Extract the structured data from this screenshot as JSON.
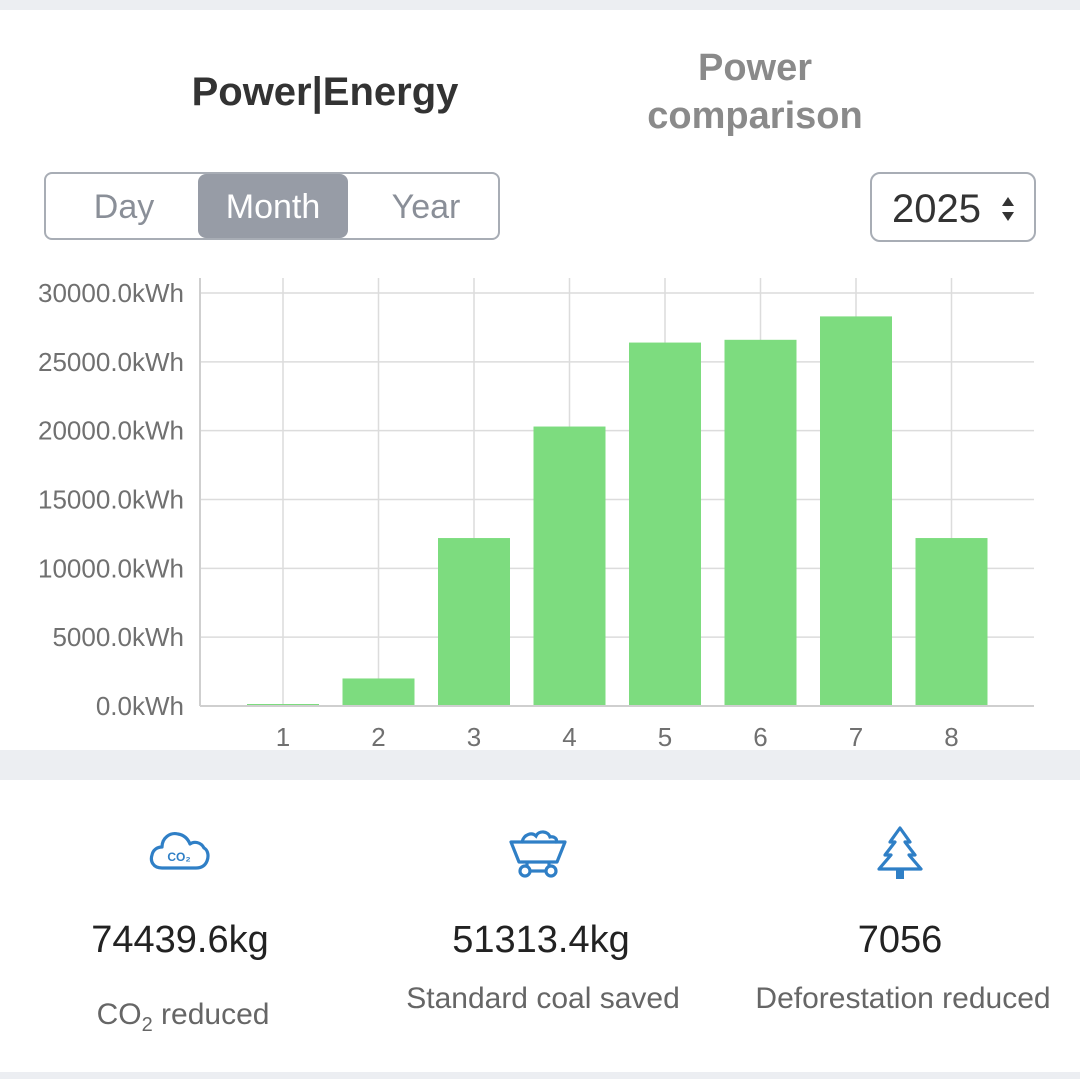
{
  "tabs": {
    "power_energy": "Power|Energy",
    "power_comparison": "Power comparison"
  },
  "period_selector": {
    "options": [
      "Day",
      "Month",
      "Year"
    ],
    "selected": "Month"
  },
  "year_select": {
    "value": "2025"
  },
  "chart_data": {
    "type": "bar",
    "categories": [
      "1",
      "2",
      "3",
      "4",
      "5",
      "6",
      "7",
      "8"
    ],
    "values": [
      100,
      2000,
      12200,
      20300,
      26400,
      26600,
      28300,
      12200
    ],
    "ylim": [
      0,
      30000
    ],
    "yticks": [
      "0.0kWh",
      "5000.0kWh",
      "10000.0kWh",
      "15000.0kWh",
      "20000.0kWh",
      "25000.0kWh",
      "30000.0kWh"
    ],
    "ytick_values": [
      0,
      5000,
      10000,
      15000,
      20000,
      25000,
      30000
    ],
    "grid": true,
    "bar_color": "#7ddc7f"
  },
  "stats": {
    "co2": {
      "icon": "co2-cloud-icon",
      "value": "74439.6kg",
      "label_prefix": "CO",
      "label_sub": "2",
      "label_suffix": " reduced"
    },
    "coal": {
      "icon": "coal-cart-icon",
      "value": "51313.4kg",
      "label": "Standard coal saved"
    },
    "trees": {
      "icon": "tree-icon",
      "value": "7056",
      "label": "Deforestation reduced"
    }
  },
  "colors": {
    "icon_blue": "#2f7fc6",
    "bar_green": "#7ddc7f",
    "selected_segment": "#979ca6"
  }
}
